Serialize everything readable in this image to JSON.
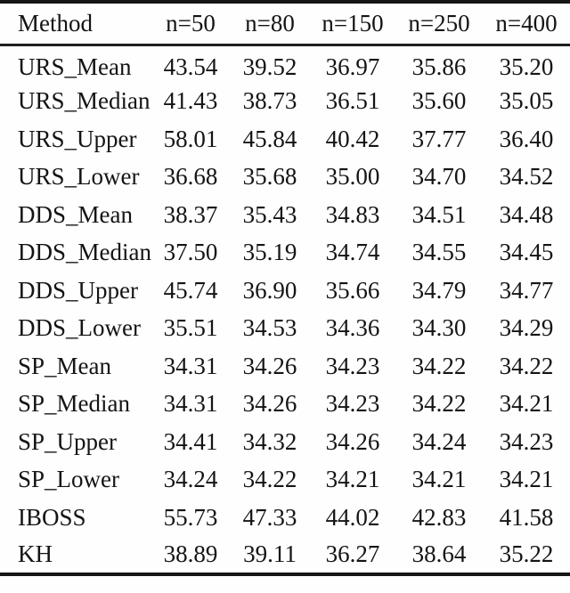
{
  "table": {
    "columns": [
      "Method",
      "n=50",
      "n=80",
      "n=150",
      "n=250",
      "n=400"
    ],
    "rows": [
      {
        "method": "URS_Mean",
        "values": [
          "43.54",
          "39.52",
          "36.97",
          "35.86",
          "35.20"
        ]
      },
      {
        "method": "URS_Median",
        "values": [
          "41.43",
          "38.73",
          "36.51",
          "35.60",
          "35.05"
        ]
      },
      {
        "method": "URS_Upper",
        "values": [
          "58.01",
          "45.84",
          "40.42",
          "37.77",
          "36.40"
        ]
      },
      {
        "method": "URS_Lower",
        "values": [
          "36.68",
          "35.68",
          "35.00",
          "34.70",
          "34.52"
        ]
      },
      {
        "method": "DDS_Mean",
        "values": [
          "38.37",
          "35.43",
          "34.83",
          "34.51",
          "34.48"
        ]
      },
      {
        "method": "DDS_Median",
        "values": [
          "37.50",
          "35.19",
          "34.74",
          "34.55",
          "34.45"
        ]
      },
      {
        "method": "DDS_Upper",
        "values": [
          "45.74",
          "36.90",
          "35.66",
          "34.79",
          "34.77"
        ]
      },
      {
        "method": "DDS_Lower",
        "values": [
          "35.51",
          "34.53",
          "34.36",
          "34.30",
          "34.29"
        ]
      },
      {
        "method": "SP_Mean",
        "values": [
          "34.31",
          "34.26",
          "34.23",
          "34.22",
          "34.22"
        ]
      },
      {
        "method": "SP_Median",
        "values": [
          "34.31",
          "34.26",
          "34.23",
          "34.22",
          "34.21"
        ]
      },
      {
        "method": "SP_Upper",
        "values": [
          "34.41",
          "34.32",
          "34.26",
          "34.24",
          "34.23"
        ]
      },
      {
        "method": "SP_Lower",
        "values": [
          "34.24",
          "34.22",
          "34.21",
          "34.21",
          "34.21"
        ]
      },
      {
        "method": "IBOSS",
        "values": [
          "55.73",
          "47.33",
          "44.02",
          "42.83",
          "41.58"
        ]
      },
      {
        "method": "KH",
        "values": [
          "38.89",
          "39.11",
          "36.27",
          "38.64",
          "35.22"
        ]
      }
    ],
    "colors": {
      "text": "#141414",
      "rule": "#151515",
      "background": "#fefefe"
    }
  }
}
